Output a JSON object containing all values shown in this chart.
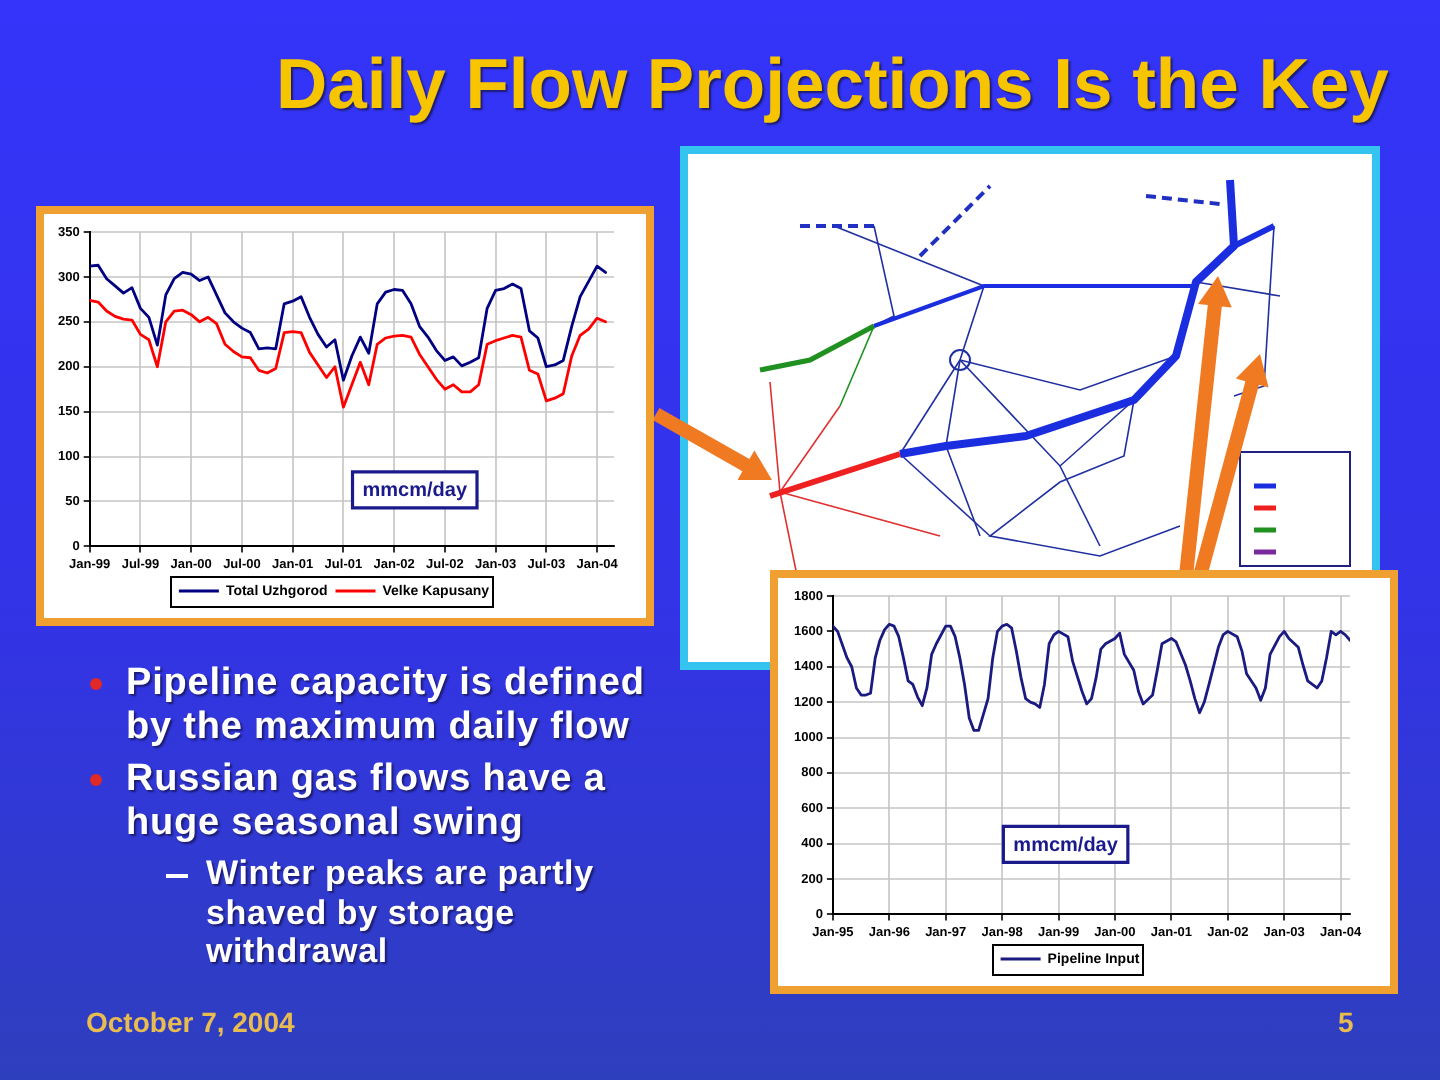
{
  "chart_data": [
    {
      "type": "line",
      "x": [
        "1999-01",
        "1999-02",
        "1999-03",
        "1999-04",
        "1999-05",
        "1999-06",
        "1999-07",
        "1999-08",
        "1999-09",
        "1999-10",
        "1999-11",
        "1999-12",
        "2000-01",
        "2000-02",
        "2000-03",
        "2000-04",
        "2000-05",
        "2000-06",
        "2000-07",
        "2000-08",
        "2000-09",
        "2000-10",
        "2000-11",
        "2000-12",
        "2001-01",
        "2001-02",
        "2001-03",
        "2001-04",
        "2001-05",
        "2001-06",
        "2001-07",
        "2001-08",
        "2001-09",
        "2001-10",
        "2001-11",
        "2001-12",
        "2002-01",
        "2002-02",
        "2002-03",
        "2002-04",
        "2002-05",
        "2002-06",
        "2002-07",
        "2002-08",
        "2002-09",
        "2002-10",
        "2002-11",
        "2002-12",
        "2003-01",
        "2003-02",
        "2003-03",
        "2003-04",
        "2003-05",
        "2003-06",
        "2003-07",
        "2003-08",
        "2003-09",
        "2003-10",
        "2003-11",
        "2003-12",
        "2004-01",
        "2004-02"
      ],
      "series": [
        {
          "name": "Total Uzhgorod",
          "color": "#000080",
          "values": [
            312,
            313,
            298,
            290,
            282,
            288,
            265,
            255,
            224,
            280,
            298,
            305,
            303,
            296,
            300,
            280,
            260,
            250,
            243,
            238,
            220,
            221,
            220,
            270,
            273,
            278,
            255,
            236,
            222,
            230,
            185,
            212,
            233,
            215,
            270,
            283,
            286,
            285,
            270,
            245,
            233,
            218,
            207,
            211,
            201,
            205,
            210,
            265,
            285,
            287,
            292,
            287,
            240,
            232,
            200,
            202,
            207,
            245,
            278,
            295,
            312,
            305
          ]
        },
        {
          "name": "Velke Kapusany",
          "color": "#ff0000",
          "values": [
            274,
            272,
            262,
            256,
            253,
            252,
            236,
            230,
            200,
            250,
            262,
            263,
            258,
            250,
            255,
            248,
            225,
            217,
            211,
            210,
            196,
            193,
            198,
            238,
            239,
            238,
            216,
            202,
            188,
            200,
            155,
            180,
            205,
            180,
            225,
            232,
            234,
            235,
            233,
            214,
            200,
            186,
            175,
            180,
            172,
            172,
            180,
            225,
            229,
            232,
            235,
            233,
            196,
            192,
            162,
            165,
            170,
            212,
            235,
            242,
            254,
            250
          ]
        }
      ],
      "xlim": [
        "1999-01",
        "2004-03"
      ],
      "xticks": [
        {
          "value": "1999-01",
          "label": "Jan-99"
        },
        {
          "value": "1999-07",
          "label": "Jul-99"
        },
        {
          "value": "2000-01",
          "label": "Jan-00"
        },
        {
          "value": "2000-07",
          "label": "Jul-00"
        },
        {
          "value": "2001-01",
          "label": "Jan-01"
        },
        {
          "value": "2001-07",
          "label": "Jul-01"
        },
        {
          "value": "2002-01",
          "label": "Jan-02"
        },
        {
          "value": "2002-07",
          "label": "Jul-02"
        },
        {
          "value": "2003-01",
          "label": "Jan-03"
        },
        {
          "value": "2003-07",
          "label": "Jul-03"
        },
        {
          "value": "2004-01",
          "label": "Jan-04"
        }
      ],
      "ylim": [
        0,
        350
      ],
      "yticks": [
        0,
        50,
        100,
        150,
        200,
        250,
        300,
        350
      ],
      "annotations": [
        "mmcm/day"
      ],
      "grid": true,
      "legend": "bottom",
      "marker": "none",
      "line_style": "solid"
    },
    {
      "type": "line",
      "x": [
        "1995-01",
        "1995-02",
        "1995-04",
        "1995-05",
        "1995-06",
        "1995-07",
        "1995-08",
        "1995-09",
        "1995-10",
        "1995-11",
        "1995-12",
        "1996-01",
        "1996-02",
        "1996-03",
        "1996-04",
        "1996-05",
        "1996-06",
        "1996-07",
        "1996-08",
        "1996-09",
        "1996-10",
        "1996-11",
        "1997-01",
        "1997-02",
        "1997-03",
        "1997-04",
        "1997-05",
        "1997-06",
        "1997-07",
        "1997-08",
        "1997-10",
        "1997-11",
        "1997-12",
        "1998-01",
        "1998-02",
        "1998-03",
        "1998-04",
        "1998-05",
        "1998-06",
        "1998-07",
        "1998-08",
        "1998-09",
        "1998-10",
        "1998-11",
        "1998-12",
        "1999-01",
        "1999-03",
        "1999-04",
        "1999-06",
        "1999-07",
        "1999-08",
        "1999-09",
        "1999-10",
        "1999-11",
        "2000-01",
        "2000-02",
        "2000-03",
        "2000-05",
        "2000-06",
        "2000-07",
        "2000-09",
        "2000-10",
        "2000-11",
        "2001-01",
        "2001-02",
        "2001-04",
        "2001-05",
        "2001-06",
        "2001-07",
        "2001-08",
        "2001-09",
        "2001-11",
        "2001-12",
        "2002-01",
        "2002-03",
        "2002-04",
        "2002-05",
        "2002-07",
        "2002-08",
        "2002-09",
        "2002-10",
        "2002-12",
        "2003-01",
        "2003-02",
        "2003-04",
        "2003-05",
        "2003-06",
        "2003-08",
        "2003-09",
        "2003-10",
        "2003-11",
        "2003-12",
        "2004-01",
        "2004-02",
        "2004-03"
      ],
      "series": [
        {
          "name": "Pipeline Input",
          "color": "#1a1a80",
          "values": [
            1630,
            1600,
            1450,
            1400,
            1280,
            1240,
            1240,
            1250,
            1450,
            1550,
            1610,
            1640,
            1630,
            1570,
            1450,
            1320,
            1300,
            1230,
            1180,
            1280,
            1470,
            1530,
            1630,
            1630,
            1570,
            1450,
            1300,
            1110,
            1040,
            1040,
            1220,
            1450,
            1600,
            1630,
            1640,
            1620,
            1490,
            1340,
            1220,
            1200,
            1190,
            1170,
            1300,
            1530,
            1580,
            1600,
            1570,
            1430,
            1260,
            1190,
            1220,
            1340,
            1500,
            1530,
            1560,
            1590,
            1470,
            1380,
            1260,
            1190,
            1240,
            1380,
            1530,
            1560,
            1540,
            1410,
            1320,
            1220,
            1140,
            1200,
            1300,
            1510,
            1580,
            1600,
            1570,
            1490,
            1360,
            1280,
            1210,
            1280,
            1470,
            1570,
            1600,
            1560,
            1510,
            1410,
            1320,
            1280,
            1320,
            1450,
            1600,
            1580,
            1600,
            1580,
            1550
          ]
        }
      ],
      "xlim": [
        "1995-01",
        "2004-03"
      ],
      "xticks": [
        {
          "value": "1995-01",
          "label": "Jan-95"
        },
        {
          "value": "1996-01",
          "label": "Jan-96"
        },
        {
          "value": "1997-01",
          "label": "Jan-97"
        },
        {
          "value": "1998-01",
          "label": "Jan-98"
        },
        {
          "value": "1999-01",
          "label": "Jan-99"
        },
        {
          "value": "2000-01",
          "label": "Jan-00"
        },
        {
          "value": "2001-01",
          "label": "Jan-01"
        },
        {
          "value": "2002-01",
          "label": "Jan-02"
        },
        {
          "value": "2003-01",
          "label": "Jan-03"
        },
        {
          "value": "2004-01",
          "label": "Jan-04"
        }
      ],
      "ylim": [
        0,
        1800
      ],
      "yticks": [
        0,
        200,
        400,
        600,
        800,
        1000,
        1200,
        1400,
        1600,
        1800
      ],
      "annotations": [
        "mmcm/day"
      ],
      "grid": true,
      "legend": "bottom",
      "marker": "none",
      "line_style": "solid"
    },
    {
      "type": "other",
      "title": "Daily Flow Projections Is the Key",
      "annotations": [
        "Pipeline capacity is defined by the maximum daily flow",
        "Russian gas flows have a huge seasonal swing",
        "Winter peaks are partly shaved by storage withdrawal",
        "October 7, 2004",
        "5"
      ]
    }
  ]
}
